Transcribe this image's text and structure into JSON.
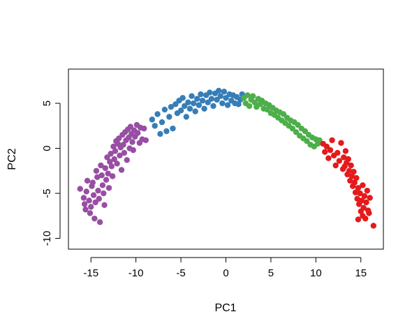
{
  "chart_data": {
    "type": "scatter",
    "title": "",
    "xlabel": "PC1",
    "ylabel": "PC2",
    "xlim": [
      -17.5,
      17.5
    ],
    "ylim": [
      -11.2,
      8.8
    ],
    "xticks": [
      -15,
      -10,
      -5,
      0,
      5,
      10,
      15
    ],
    "yticks": [
      -10,
      -5,
      0,
      5
    ],
    "grid": false,
    "legend": "none",
    "series": [
      {
        "color": "#984EA3",
        "points": [
          [
            -16.2,
            -4.5
          ],
          [
            -15.8,
            -5.5
          ],
          [
            -15.7,
            -6.2
          ],
          [
            -15.6,
            -6.8
          ],
          [
            -15.5,
            -4.8
          ],
          [
            -15.4,
            -3.6
          ],
          [
            -15.2,
            -5.8
          ],
          [
            -15.1,
            -7.2
          ],
          [
            -15.0,
            -6.5
          ],
          [
            -14.9,
            -4.2
          ],
          [
            -14.8,
            -3.8
          ],
          [
            -14.7,
            -5.2
          ],
          [
            -14.6,
            -7.8
          ],
          [
            -14.5,
            -6.0
          ],
          [
            -14.4,
            -2.5
          ],
          [
            -14.3,
            -3.2
          ],
          [
            -14.2,
            -4.7
          ],
          [
            -14.1,
            -5.6
          ],
          [
            -14.0,
            -8.2
          ],
          [
            -13.9,
            -1.9
          ],
          [
            -13.8,
            -3.0
          ],
          [
            -13.7,
            -4.1
          ],
          [
            -13.6,
            -5.0
          ],
          [
            -13.5,
            -6.3
          ],
          [
            -13.4,
            -2.2
          ],
          [
            -13.3,
            -3.5
          ],
          [
            -13.2,
            -1.0
          ],
          [
            -13.1,
            -2.8
          ],
          [
            -13.0,
            -4.4
          ],
          [
            -12.9,
            -1.5
          ],
          [
            -12.8,
            -0.6
          ],
          [
            -12.7,
            -2.0
          ],
          [
            -12.6,
            -3.1
          ],
          [
            -12.5,
            0.2
          ],
          [
            -12.4,
            -1.2
          ],
          [
            -12.3,
            -0.3
          ],
          [
            -12.2,
            0.8
          ],
          [
            -12.1,
            -1.7
          ],
          [
            -12.0,
            0.5
          ],
          [
            -11.9,
            1.1
          ],
          [
            -11.8,
            -0.8
          ],
          [
            -11.7,
            0.1
          ],
          [
            -11.6,
            -2.4
          ],
          [
            -11.5,
            1.5
          ],
          [
            -11.4,
            0.4
          ],
          [
            -11.3,
            -0.5
          ],
          [
            -11.2,
            1.8
          ],
          [
            -11.1,
            0.9
          ],
          [
            -11.0,
            -1.3
          ],
          [
            -10.9,
            2.1
          ],
          [
            -10.8,
            1.2
          ],
          [
            -10.7,
            0.0
          ],
          [
            -10.6,
            2.4
          ],
          [
            -10.5,
            1.6
          ],
          [
            -10.4,
            0.7
          ],
          [
            -10.3,
            -0.2
          ],
          [
            -10.2,
            2.0
          ],
          [
            -10.1,
            1.3
          ],
          [
            -9.9,
            2.6
          ],
          [
            -9.8,
            1.7
          ],
          [
            -9.6,
            0.6
          ],
          [
            -9.5,
            2.3
          ],
          [
            -9.3,
            1.0
          ],
          [
            -9.1,
            2.2
          ],
          [
            -8.9,
            0.9
          ]
        ]
      },
      {
        "color": "#377EB8",
        "points": [
          [
            -8.2,
            3.2
          ],
          [
            -7.9,
            2.5
          ],
          [
            -7.6,
            3.8
          ],
          [
            -7.3,
            1.6
          ],
          [
            -7.1,
            2.9
          ],
          [
            -6.8,
            4.3
          ],
          [
            -6.6,
            1.9
          ],
          [
            -6.3,
            3.5
          ],
          [
            -6.1,
            4.6
          ],
          [
            -5.9,
            2.2
          ],
          [
            -5.6,
            4.9
          ],
          [
            -5.4,
            3.9
          ],
          [
            -5.2,
            5.3
          ],
          [
            -5.0,
            4.2
          ],
          [
            -4.8,
            5.6
          ],
          [
            -4.6,
            4.7
          ],
          [
            -4.4,
            3.5
          ],
          [
            -4.2,
            5.1
          ],
          [
            -4.0,
            4.4
          ],
          [
            -3.8,
            5.8
          ],
          [
            -3.6,
            5.0
          ],
          [
            -3.4,
            4.1
          ],
          [
            -3.2,
            5.5
          ],
          [
            -3.0,
            4.8
          ],
          [
            -2.8,
            6.0
          ],
          [
            -2.6,
            5.3
          ],
          [
            -2.4,
            4.4
          ],
          [
            -2.2,
            5.9
          ],
          [
            -2.0,
            5.1
          ],
          [
            -1.8,
            6.2
          ],
          [
            -1.6,
            5.5
          ],
          [
            -1.4,
            4.7
          ],
          [
            -1.2,
            6.1
          ],
          [
            -1.0,
            5.4
          ],
          [
            -0.8,
            6.4
          ],
          [
            -0.6,
            5.8
          ],
          [
            -0.4,
            5.0
          ],
          [
            -0.2,
            6.3
          ],
          [
            0.0,
            5.6
          ],
          [
            0.2,
            4.8
          ],
          [
            0.4,
            6.0
          ],
          [
            0.6,
            5.3
          ],
          [
            0.8,
            5.9
          ],
          [
            1.0,
            5.0
          ],
          [
            1.2,
            5.7
          ],
          [
            1.4,
            4.9
          ],
          [
            1.6,
            5.4
          ],
          [
            1.8,
            6.0
          ]
        ]
      },
      {
        "color": "#4DAF4A",
        "points": [
          [
            2.0,
            5.6
          ],
          [
            2.2,
            5.0
          ],
          [
            2.4,
            5.9
          ],
          [
            2.6,
            4.7
          ],
          [
            2.8,
            5.4
          ],
          [
            3.0,
            5.8
          ],
          [
            3.2,
            5.1
          ],
          [
            3.4,
            4.6
          ],
          [
            3.6,
            5.5
          ],
          [
            3.8,
            4.9
          ],
          [
            4.0,
            5.3
          ],
          [
            4.2,
            4.4
          ],
          [
            4.4,
            5.0
          ],
          [
            4.6,
            4.3
          ],
          [
            4.8,
            4.8
          ],
          [
            5.0,
            3.9
          ],
          [
            5.2,
            4.5
          ],
          [
            5.4,
            3.7
          ],
          [
            5.6,
            4.2
          ],
          [
            5.8,
            3.4
          ],
          [
            6.0,
            4.0
          ],
          [
            6.2,
            3.1
          ],
          [
            6.4,
            3.8
          ],
          [
            6.6,
            2.8
          ],
          [
            6.8,
            3.4
          ],
          [
            7.0,
            2.5
          ],
          [
            7.2,
            3.1
          ],
          [
            7.4,
            2.2
          ],
          [
            7.6,
            2.9
          ],
          [
            7.8,
            1.8
          ],
          [
            8.0,
            2.6
          ],
          [
            8.2,
            1.4
          ],
          [
            8.4,
            2.2
          ],
          [
            8.6,
            1.1
          ],
          [
            8.8,
            1.9
          ],
          [
            9.0,
            0.8
          ],
          [
            9.2,
            1.5
          ],
          [
            9.4,
            0.4
          ],
          [
            9.6,
            1.2
          ],
          [
            9.8,
            0.2
          ],
          [
            10.0,
            1.0
          ],
          [
            10.2,
            0.5
          ],
          [
            10.4,
            0.9
          ]
        ]
      },
      {
        "color": "#E41A1C",
        "points": [
          [
            10.8,
            0.5
          ],
          [
            11.0,
            -0.4
          ],
          [
            11.2,
            0.2
          ],
          [
            11.4,
            -1.1
          ],
          [
            11.6,
            -0.2
          ],
          [
            11.8,
            0.9
          ],
          [
            12.0,
            -0.8
          ],
          [
            12.2,
            -1.9
          ],
          [
            12.4,
            -0.5
          ],
          [
            12.6,
            -1.4
          ],
          [
            12.8,
            0.6
          ],
          [
            13.0,
            -2.3
          ],
          [
            13.1,
            -1.0
          ],
          [
            13.2,
            -2.0
          ],
          [
            13.3,
            -0.3
          ],
          [
            13.4,
            -1.6
          ],
          [
            13.5,
            -2.9
          ],
          [
            13.6,
            -1.2
          ],
          [
            13.7,
            -2.5
          ],
          [
            13.8,
            -3.6
          ],
          [
            13.9,
            -1.9
          ],
          [
            14.0,
            -3.1
          ],
          [
            14.1,
            -4.2
          ],
          [
            14.2,
            -2.6
          ],
          [
            14.3,
            -3.8
          ],
          [
            14.4,
            -4.9
          ],
          [
            14.5,
            -3.3
          ],
          [
            14.6,
            -5.6
          ],
          [
            14.7,
            -4.4
          ],
          [
            14.8,
            -6.2
          ],
          [
            14.9,
            -5.0
          ],
          [
            15.0,
            -7.0
          ],
          [
            15.1,
            -5.8
          ],
          [
            15.2,
            -4.1
          ],
          [
            15.3,
            -6.6
          ],
          [
            15.4,
            -5.3
          ],
          [
            15.5,
            -7.8
          ],
          [
            15.6,
            -6.0
          ],
          [
            15.7,
            -4.7
          ],
          [
            15.8,
            -6.9
          ],
          [
            16.0,
            -5.5
          ],
          [
            14.7,
            -7.9
          ],
          [
            15.2,
            -7.5
          ],
          [
            16.4,
            -8.6
          ],
          [
            15.9,
            -7.2
          ]
        ]
      }
    ]
  }
}
